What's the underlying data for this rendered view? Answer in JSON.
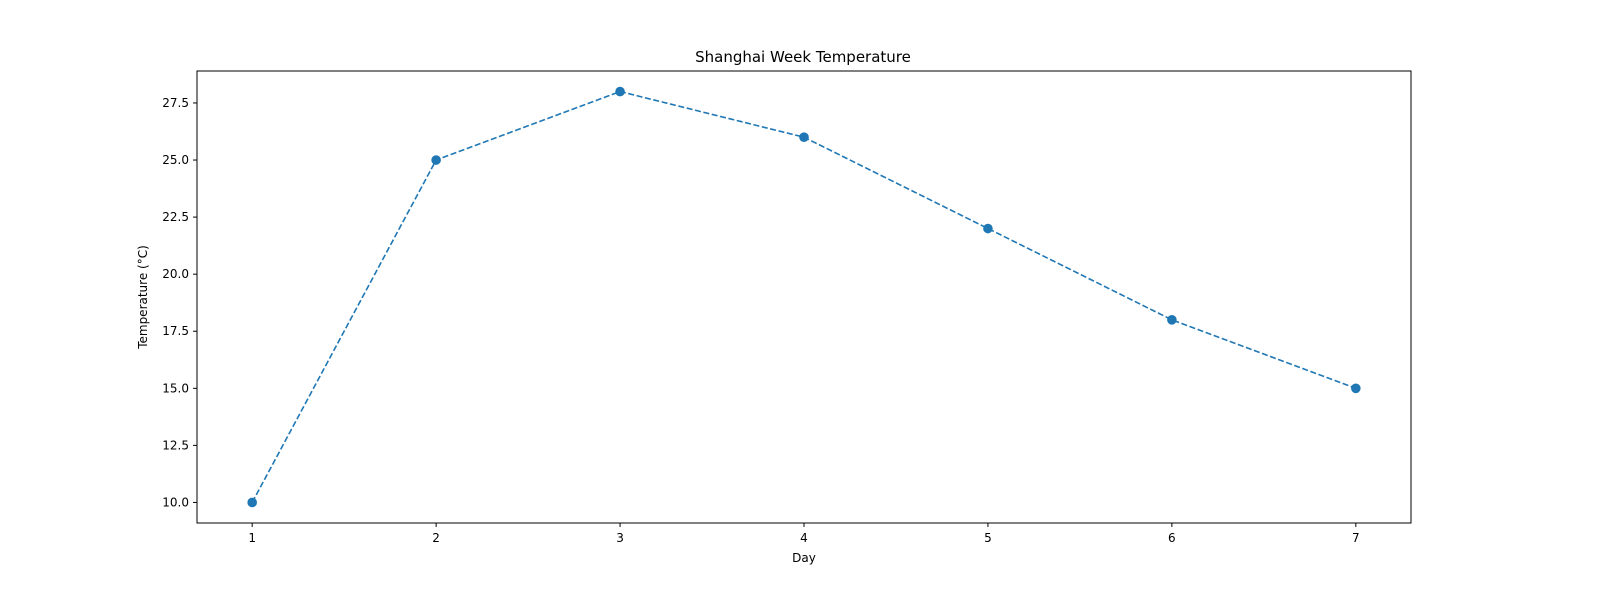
{
  "chart_data": {
    "type": "line",
    "title": "Shanghai Week Temperature",
    "xlabel": "Day",
    "ylabel": "Temperature (°C)",
    "x": [
      1,
      2,
      3,
      4,
      5,
      6,
      7
    ],
    "series": [
      {
        "values": [
          10,
          25,
          28,
          26,
          22,
          18,
          15
        ],
        "color": "#1f77b4",
        "line_style": "dashed",
        "marker": "circle"
      }
    ],
    "xlim": [
      0.7,
      7.3
    ],
    "ylim": [
      9.1,
      28.9
    ],
    "x_ticks": [
      1,
      2,
      3,
      4,
      5,
      6,
      7
    ],
    "x_tick_labels": [
      "1",
      "2",
      "3",
      "4",
      "5",
      "6",
      "7"
    ],
    "y_ticks": [
      10.0,
      12.5,
      15.0,
      17.5,
      20.0,
      22.5,
      25.0,
      27.5
    ],
    "y_tick_labels": [
      "10.0",
      "12.5",
      "15.0",
      "17.5",
      "20.0",
      "22.5",
      "25.0",
      "27.5"
    ],
    "grid": false,
    "legend": "none"
  }
}
